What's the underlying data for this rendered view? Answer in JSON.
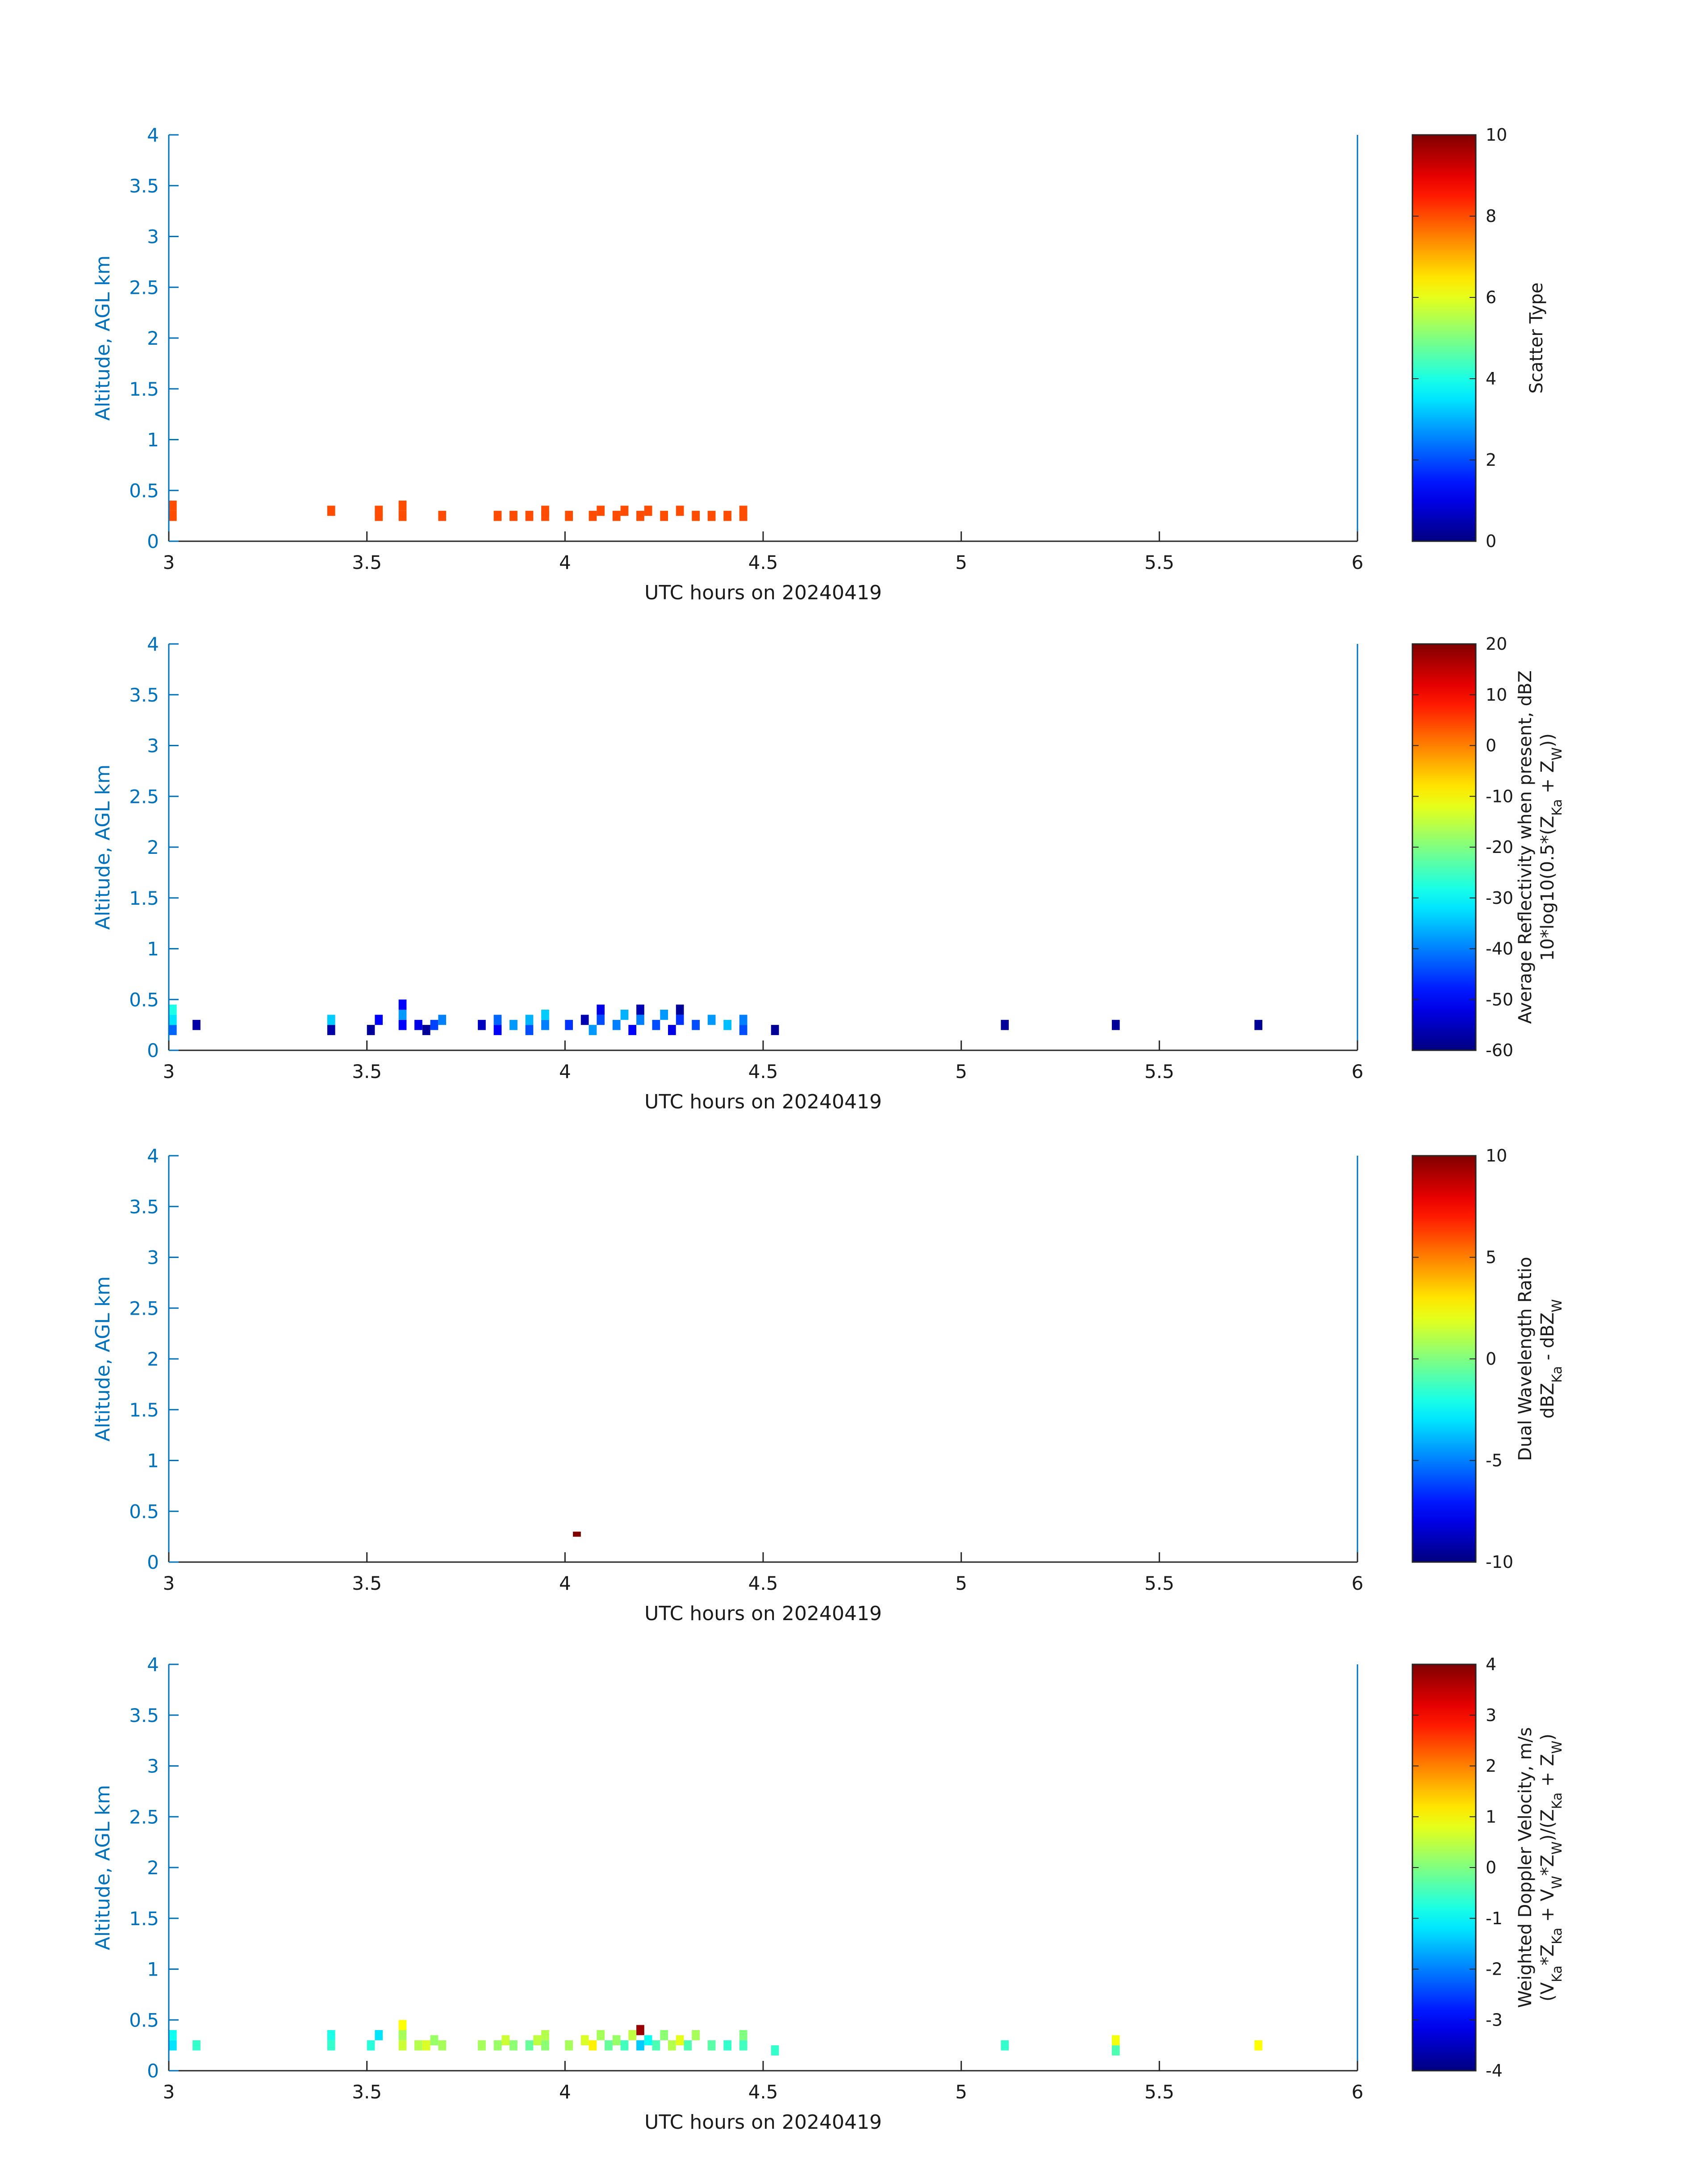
{
  "chart_data": [
    {
      "type": "heatmap",
      "xlabel": "UTC hours on 20240419",
      "ylabel": "Altitude, AGL km",
      "xlim": [
        3,
        6
      ],
      "ylim": [
        0,
        4
      ],
      "xticks": [
        "3",
        "3.5",
        "4",
        "4.5",
        "5",
        "5.5",
        "6"
      ],
      "yticks": [
        "0",
        "0.5",
        "1",
        "1.5",
        "2",
        "2.5",
        "3",
        "3.5",
        "4"
      ],
      "colorbar": {
        "label_lines": [
          "Scatter Type"
        ],
        "range": [
          0,
          10
        ],
        "ticks": [
          "0",
          "2",
          "4",
          "6",
          "8",
          "10"
        ],
        "colormap": "jet"
      },
      "cell_size": {
        "dx": 0.02,
        "dy": 0.1
      },
      "cells": [
        [
          3.01,
          0.25,
          8
        ],
        [
          3.01,
          0.35,
          8
        ],
        [
          3.41,
          0.3,
          8
        ],
        [
          3.53,
          0.25,
          8
        ],
        [
          3.53,
          0.3,
          8
        ],
        [
          3.59,
          0.25,
          8
        ],
        [
          3.59,
          0.35,
          8
        ],
        [
          3.69,
          0.25,
          8
        ],
        [
          3.83,
          0.25,
          8
        ],
        [
          3.87,
          0.25,
          8
        ],
        [
          3.91,
          0.25,
          8
        ],
        [
          3.95,
          0.25,
          8
        ],
        [
          3.95,
          0.3,
          8
        ],
        [
          4.01,
          0.25,
          8
        ],
        [
          4.07,
          0.25,
          8
        ],
        [
          4.09,
          0.3,
          8
        ],
        [
          4.13,
          0.25,
          8
        ],
        [
          4.15,
          0.3,
          8
        ],
        [
          4.19,
          0.25,
          8
        ],
        [
          4.21,
          0.3,
          8
        ],
        [
          4.25,
          0.25,
          8
        ],
        [
          4.29,
          0.3,
          8
        ],
        [
          4.33,
          0.25,
          8
        ],
        [
          4.37,
          0.25,
          8
        ],
        [
          4.41,
          0.25,
          8
        ],
        [
          4.45,
          0.25,
          8
        ],
        [
          4.45,
          0.3,
          8
        ]
      ]
    },
    {
      "type": "heatmap",
      "xlabel": "UTC hours on 20240419",
      "ylabel": "Altitude, AGL km",
      "xlim": [
        3,
        6
      ],
      "ylim": [
        0,
        4
      ],
      "xticks": [
        "3",
        "3.5",
        "4",
        "4.5",
        "5",
        "5.5",
        "6"
      ],
      "yticks": [
        "0",
        "0.5",
        "1",
        "1.5",
        "2",
        "2.5",
        "3",
        "3.5",
        "4"
      ],
      "colorbar": {
        "label_lines": [
          "Average Reflectivity when present, dBZ",
          "10*log10(0.5*(Z{Ka} + Z{W}))"
        ],
        "range": [
          -60,
          20
        ],
        "ticks": [
          "-60",
          "-50",
          "-40",
          "-30",
          "-20",
          "-10",
          "0",
          "10",
          "20"
        ],
        "colormap": "jet"
      },
      "cell_size": {
        "dx": 0.02,
        "dy": 0.1
      },
      "cells": [
        [
          3.01,
          0.2,
          -42
        ],
        [
          3.01,
          0.3,
          -32
        ],
        [
          3.01,
          0.4,
          -28
        ],
        [
          3.07,
          0.25,
          -57
        ],
        [
          3.41,
          0.2,
          -57
        ],
        [
          3.41,
          0.3,
          -34
        ],
        [
          3.51,
          0.2,
          -58
        ],
        [
          3.53,
          0.3,
          -50
        ],
        [
          3.59,
          0.25,
          -50
        ],
        [
          3.59,
          0.35,
          -38
        ],
        [
          3.59,
          0.45,
          -50
        ],
        [
          3.63,
          0.25,
          -52
        ],
        [
          3.65,
          0.2,
          -58
        ],
        [
          3.67,
          0.25,
          -45
        ],
        [
          3.69,
          0.3,
          -40
        ],
        [
          3.79,
          0.25,
          -55
        ],
        [
          3.83,
          0.2,
          -50
        ],
        [
          3.83,
          0.3,
          -42
        ],
        [
          3.87,
          0.25,
          -38
        ],
        [
          3.91,
          0.2,
          -44
        ],
        [
          3.91,
          0.3,
          -36
        ],
        [
          3.95,
          0.25,
          -40
        ],
        [
          3.95,
          0.35,
          -34
        ],
        [
          4.01,
          0.25,
          -46
        ],
        [
          4.05,
          0.3,
          -56
        ],
        [
          4.07,
          0.2,
          -38
        ],
        [
          4.09,
          0.3,
          -44
        ],
        [
          4.09,
          0.4,
          -52
        ],
        [
          4.13,
          0.25,
          -40
        ],
        [
          4.15,
          0.35,
          -36
        ],
        [
          4.17,
          0.2,
          -50
        ],
        [
          4.19,
          0.3,
          -40
        ],
        [
          4.19,
          0.4,
          -56
        ],
        [
          4.23,
          0.25,
          -44
        ],
        [
          4.25,
          0.35,
          -38
        ],
        [
          4.27,
          0.2,
          -52
        ],
        [
          4.29,
          0.3,
          -46
        ],
        [
          4.29,
          0.4,
          -58
        ],
        [
          4.33,
          0.25,
          -44
        ],
        [
          4.37,
          0.3,
          -38
        ],
        [
          4.41,
          0.25,
          -35
        ],
        [
          4.45,
          0.2,
          -44
        ],
        [
          4.45,
          0.3,
          -40
        ],
        [
          4.53,
          0.2,
          -58
        ],
        [
          5.11,
          0.25,
          -58
        ],
        [
          5.39,
          0.25,
          -58
        ],
        [
          5.75,
          0.25,
          -58
        ]
      ]
    },
    {
      "type": "heatmap",
      "xlabel": "UTC hours on 20240419",
      "ylabel": "Altitude, AGL km",
      "xlim": [
        3,
        6
      ],
      "ylim": [
        0,
        4
      ],
      "xticks": [
        "3",
        "3.5",
        "4",
        "4.5",
        "5",
        "5.5",
        "6"
      ],
      "yticks": [
        "0",
        "0.5",
        "1",
        "1.5",
        "2",
        "2.5",
        "3",
        "3.5",
        "4"
      ],
      "colorbar": {
        "label_lines": [
          "Dual Wavelength Ratio",
          "dBZ{Ka} - dBZ{W}"
        ],
        "range": [
          -10,
          10
        ],
        "ticks": [
          "-10",
          "-5",
          "0",
          "5",
          "10"
        ],
        "colormap": "jet"
      },
      "cell_size": {
        "dx": 0.02,
        "dy": 0.05
      },
      "cells": [
        [
          4.03,
          0.275,
          10
        ]
      ]
    },
    {
      "type": "heatmap",
      "xlabel": "UTC hours on 20240419",
      "ylabel": "Altitude, AGL km",
      "xlim": [
        3,
        6
      ],
      "ylim": [
        0,
        4
      ],
      "xticks": [
        "3",
        "3.5",
        "4",
        "4.5",
        "5",
        "5.5",
        "6"
      ],
      "yticks": [
        "0",
        "0.5",
        "1",
        "1.5",
        "2",
        "2.5",
        "3",
        "3.5",
        "4"
      ],
      "colorbar": {
        "label_lines": [
          "Weighted Doppler Velocity, m/s",
          "(V{Ka}*Z{Ka} + V{W}*Z{W})/(Z{Ka} + Z{W})"
        ],
        "range": [
          -4,
          4
        ],
        "ticks": [
          "-4",
          "-3",
          "-2",
          "-1",
          "0",
          "1",
          "2",
          "3",
          "4"
        ],
        "colormap": "jet"
      },
      "cell_size": {
        "dx": 0.02,
        "dy": 0.1
      },
      "cells": [
        [
          3.01,
          0.25,
          -1.2
        ],
        [
          3.01,
          0.35,
          -0.9
        ],
        [
          3.07,
          0.25,
          -0.6
        ],
        [
          3.41,
          0.25,
          -0.6
        ],
        [
          3.41,
          0.35,
          -0.8
        ],
        [
          3.51,
          0.25,
          -0.7
        ],
        [
          3.53,
          0.35,
          -1.2
        ],
        [
          3.59,
          0.25,
          0.6
        ],
        [
          3.59,
          0.35,
          0.3
        ],
        [
          3.59,
          0.45,
          1.0
        ],
        [
          3.63,
          0.25,
          0.4
        ],
        [
          3.65,
          0.25,
          0.7
        ],
        [
          3.67,
          0.3,
          0.2
        ],
        [
          3.69,
          0.25,
          0.3
        ],
        [
          3.79,
          0.25,
          0.3
        ],
        [
          3.83,
          0.25,
          0.2
        ],
        [
          3.85,
          0.3,
          0.6
        ],
        [
          3.87,
          0.25,
          0.1
        ],
        [
          3.91,
          0.25,
          -0.2
        ],
        [
          3.93,
          0.3,
          0.5
        ],
        [
          3.95,
          0.25,
          0.1
        ],
        [
          3.95,
          0.35,
          0.4
        ],
        [
          4.01,
          0.25,
          0.3
        ],
        [
          4.05,
          0.3,
          0.7
        ],
        [
          4.07,
          0.25,
          1.1
        ],
        [
          4.09,
          0.35,
          0.3
        ],
        [
          4.11,
          0.25,
          -0.2
        ],
        [
          4.13,
          0.3,
          0.2
        ],
        [
          4.15,
          0.25,
          -0.5
        ],
        [
          4.17,
          0.35,
          0.5
        ],
        [
          4.19,
          0.25,
          -1.4
        ],
        [
          4.19,
          0.4,
          3.8
        ],
        [
          4.21,
          0.3,
          -0.9
        ],
        [
          4.23,
          0.25,
          -0.4
        ],
        [
          4.25,
          0.35,
          0.1
        ],
        [
          4.27,
          0.25,
          0.4
        ],
        [
          4.29,
          0.3,
          0.8
        ],
        [
          4.31,
          0.25,
          -0.4
        ],
        [
          4.33,
          0.35,
          0.3
        ],
        [
          4.37,
          0.25,
          -0.3
        ],
        [
          4.41,
          0.25,
          -0.6
        ],
        [
          4.45,
          0.25,
          -0.5
        ],
        [
          4.45,
          0.35,
          0.0
        ],
        [
          4.53,
          0.2,
          -0.6
        ],
        [
          5.11,
          0.25,
          -0.6
        ],
        [
          5.39,
          0.2,
          -0.4
        ],
        [
          5.39,
          0.3,
          0.9
        ],
        [
          5.75,
          0.25,
          1.0
        ]
      ]
    }
  ]
}
